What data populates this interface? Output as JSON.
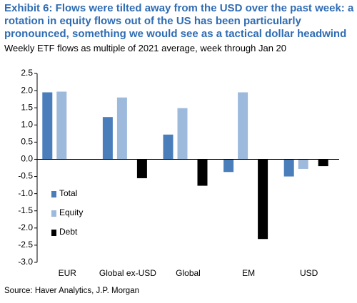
{
  "chart_data": {
    "type": "bar",
    "title": "Exhibit 6: Flows were tilted away from the USD over the past week: a rotation in equity flows out of the US has been particularly pronounced, something we would see as a tactical dollar headwind",
    "subtitle": "Weekly ETF flows as multiple of 2021 average, week through Jan 20",
    "source": "Source: Haver Analytics, J.P. Morgan",
    "categories": [
      "EUR",
      "Global ex-USD",
      "Global",
      "EM",
      "USD"
    ],
    "series": [
      {
        "name": "Total",
        "color": "#4a7ebb",
        "values": [
          1.95,
          1.23,
          0.72,
          -0.37,
          -0.5
        ]
      },
      {
        "name": "Equity",
        "color": "#9db9dc",
        "values": [
          1.97,
          1.8,
          1.49,
          1.95,
          -0.28
        ]
      },
      {
        "name": "Debt",
        "color": "#000000",
        "values": [
          0,
          -0.55,
          -0.77,
          -2.32,
          -0.2
        ]
      }
    ],
    "ylim": [
      -3.0,
      2.5
    ],
    "yticks": [
      {
        "value": 2.5,
        "label": "2.5"
      },
      {
        "value": 2.0,
        "label": "2.0"
      },
      {
        "value": 1.5,
        "label": "1.5"
      },
      {
        "value": 1.0,
        "label": "1.0"
      },
      {
        "value": 0.5,
        "label": "0.5"
      },
      {
        "value": 0,
        "label": "0.0"
      },
      {
        "value": -0.5,
        "label": "-0.5"
      },
      {
        "value": -1.0,
        "label": "-1.0"
      },
      {
        "value": -1.5,
        "label": "-1.5"
      },
      {
        "value": -2.0,
        "label": "-2.0"
      },
      {
        "value": -2.5,
        "label": "-2.5"
      },
      {
        "value": -3.0,
        "label": "-3.0"
      }
    ],
    "grid": false,
    "legend_position": "lower left"
  }
}
